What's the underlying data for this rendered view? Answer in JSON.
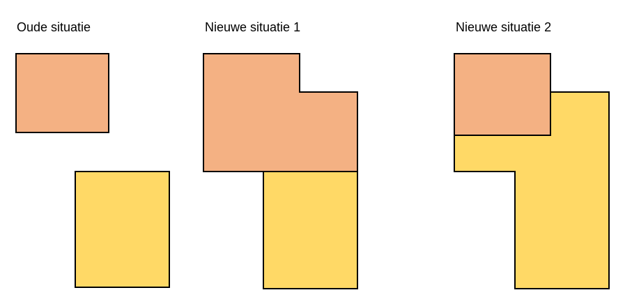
{
  "panels": [
    {
      "title": "Oude situatie"
    },
    {
      "title": "Nieuwe situatie 1"
    },
    {
      "title": "Nieuwe situatie 2"
    }
  ],
  "colors": {
    "parcel_orange": "#F4B183",
    "parcel_yellow": "#FFD966",
    "outline": "#000000"
  }
}
